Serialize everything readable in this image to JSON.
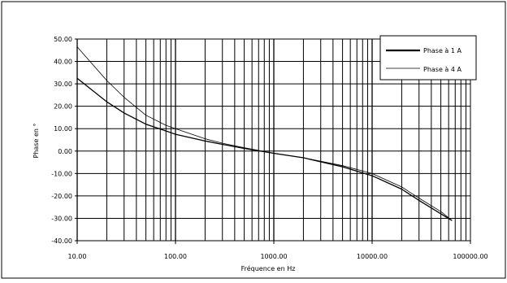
{
  "chart_data": {
    "type": "line",
    "title": "",
    "xlabel": "Fréquence en Hz",
    "ylabel": "Phase en °",
    "x_scale": "log",
    "xlim": [
      10,
      100000
    ],
    "ylim": [
      -40,
      50
    ],
    "grid": true,
    "legend_position": "top-right",
    "x_ticks": [
      {
        "value": 10,
        "label": "10.00"
      },
      {
        "value": 100,
        "label": "100.00"
      },
      {
        "value": 1000,
        "label": "1000.00"
      },
      {
        "value": 10000,
        "label": "10000.00"
      },
      {
        "value": 100000,
        "label": "100000.00"
      }
    ],
    "y_ticks": [
      {
        "value": 50,
        "label": "50.00"
      },
      {
        "value": 40,
        "label": "40.00"
      },
      {
        "value": 30,
        "label": "30.00"
      },
      {
        "value": 20,
        "label": "20.00"
      },
      {
        "value": 10,
        "label": "10.00"
      },
      {
        "value": 0,
        "label": "0.00"
      },
      {
        "value": -10,
        "label": "-10.00"
      },
      {
        "value": -20,
        "label": "-20.00"
      },
      {
        "value": -30,
        "label": "-30.00"
      },
      {
        "value": -40,
        "label": "-40.00"
      }
    ],
    "series": [
      {
        "name": "Phase à 1 A",
        "color": "#000000",
        "stroke": "thick",
        "points": [
          [
            10,
            32.5
          ],
          [
            20,
            22
          ],
          [
            30,
            17
          ],
          [
            50,
            12
          ],
          [
            80,
            9
          ],
          [
            100,
            7.5
          ],
          [
            200,
            4.5
          ],
          [
            300,
            3
          ],
          [
            500,
            1.2
          ],
          [
            1000,
            -1
          ],
          [
            2000,
            -3
          ],
          [
            5000,
            -7
          ],
          [
            10000,
            -11
          ],
          [
            20000,
            -17
          ],
          [
            30000,
            -22
          ],
          [
            50000,
            -28
          ],
          [
            65000,
            -31
          ]
        ]
      },
      {
        "name": "Phase à 4 A",
        "color": "#000000",
        "stroke": "thin",
        "points": [
          [
            10,
            46.5
          ],
          [
            20,
            31.5
          ],
          [
            30,
            24
          ],
          [
            50,
            16
          ],
          [
            80,
            11.5
          ],
          [
            100,
            10
          ],
          [
            200,
            5.5
          ],
          [
            300,
            3.5
          ],
          [
            500,
            1.5
          ],
          [
            1000,
            -1
          ],
          [
            2000,
            -3
          ],
          [
            5000,
            -6.5
          ],
          [
            10000,
            -10
          ],
          [
            20000,
            -16
          ],
          [
            30000,
            -21
          ],
          [
            50000,
            -27
          ],
          [
            65000,
            -31
          ]
        ]
      }
    ]
  }
}
